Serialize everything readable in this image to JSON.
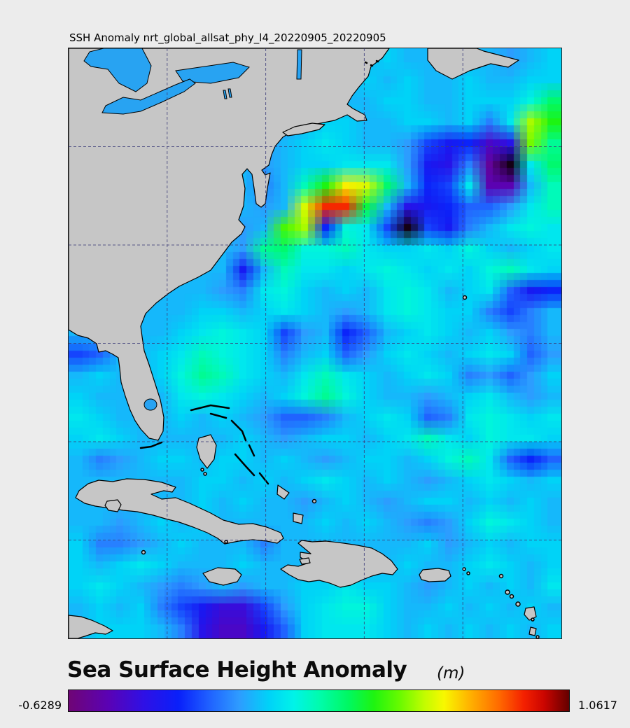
{
  "header": {
    "plot_title": "SSH Anomaly nrt_global_allsat_phy_l4_20220905_20220905"
  },
  "footer": {
    "heading": "Sea Surface Height Anomaly",
    "unit": "(m)",
    "min_label": "-0.6289",
    "max_label": "1.0617"
  },
  "chart_data": {
    "type": "heatmap",
    "title": "SSH Anomaly nrt_global_allsat_phy_l4_20220905_20220905",
    "variable": "Sea Surface Height Anomaly",
    "unit": "m",
    "vmin": -0.6289,
    "vmax": 1.0617,
    "colorbar_labels": [
      "-0.6289",
      "1.0617"
    ],
    "land_color": "#c6c6c6",
    "lake_color": "#28a3f2",
    "below_min_color": "#140014",
    "colormap_stops": [
      [
        0.0,
        "#6f0575"
      ],
      [
        0.08,
        "#5a02b5"
      ],
      [
        0.15,
        "#2f10e5"
      ],
      [
        0.22,
        "#0920fa"
      ],
      [
        0.28,
        "#1f60ff"
      ],
      [
        0.34,
        "#2e9bff"
      ],
      [
        0.4,
        "#00d2f8"
      ],
      [
        0.45,
        "#00f3e8"
      ],
      [
        0.5,
        "#00fcae"
      ],
      [
        0.56,
        "#00f860"
      ],
      [
        0.61,
        "#1ef410"
      ],
      [
        0.66,
        "#66fa00"
      ],
      [
        0.71,
        "#c0fc00"
      ],
      [
        0.75,
        "#f8f800"
      ],
      [
        0.8,
        "#ffb400"
      ],
      [
        0.86,
        "#ff6a00"
      ],
      [
        0.91,
        "#f42000"
      ],
      [
        0.95,
        "#cb0500"
      ],
      [
        1.0,
        "#640000"
      ]
    ],
    "layout_hints": {
      "grid_on": true,
      "v_gridlines": 4,
      "h_gridlines": 5,
      "legend": "bottom colorbar"
    },
    "grid": {
      "cols": 24,
      "rows": 28,
      "values": [
        [
          0,
          0,
          0,
          0,
          0,
          0,
          0,
          0,
          0,
          0,
          -0.05,
          0,
          0,
          0.05,
          0,
          0.05,
          0,
          0,
          0,
          0,
          0,
          -0.05,
          0,
          0.05
        ],
        [
          0,
          0,
          0,
          0,
          0,
          0,
          0,
          0,
          0,
          0,
          -0.05,
          0,
          0.05,
          0,
          0.05,
          0,
          0.05,
          0,
          0,
          0.05,
          0,
          0,
          0.05,
          0.05
        ],
        [
          0,
          0,
          0,
          0,
          0,
          0,
          0,
          0,
          0,
          0,
          -0.05,
          0,
          0.05,
          0,
          0,
          0.05,
          0.05,
          0,
          0,
          0.05,
          0.05,
          0.05,
          0.15,
          0.3
        ],
        [
          0,
          0,
          0,
          0,
          0,
          0,
          0,
          0,
          0,
          -0.05,
          -0.05,
          0,
          0.05,
          0.05,
          0,
          0,
          0.05,
          0.05,
          0,
          0.05,
          -0.1,
          0.1,
          0.55,
          0.4
        ],
        [
          0,
          0,
          0,
          0,
          0,
          0,
          0,
          0,
          0,
          -0.05,
          0,
          0.05,
          0.1,
          0.05,
          0,
          0,
          -0.05,
          -0.2,
          -0.3,
          -0.25,
          -0.45,
          -0.35,
          0.5,
          0.25
        ],
        [
          0,
          0,
          0,
          0,
          0,
          0,
          0,
          0,
          0,
          -0.05,
          0,
          0.05,
          0.05,
          0.1,
          0.1,
          0.1,
          -0.05,
          -0.3,
          -0.35,
          -0.1,
          -0.55,
          -0.72,
          0.1,
          0.3
        ],
        [
          0,
          0,
          0,
          0,
          0,
          0,
          0,
          0,
          0,
          -0.1,
          0,
          0.2,
          0.4,
          0.65,
          0.6,
          0.3,
          0,
          -0.25,
          -0.2,
          0.1,
          -0.5,
          -0.5,
          0,
          0.2
        ],
        [
          0,
          0,
          0,
          0,
          0,
          0,
          0,
          0,
          0,
          -0.05,
          0,
          0.6,
          0.9,
          0.9,
          0.35,
          0,
          -0.35,
          -0.3,
          -0.25,
          -0.15,
          -0.15,
          -0.05,
          0.1,
          0.2
        ],
        [
          0,
          0,
          0,
          0,
          0,
          0,
          0,
          0,
          -0.05,
          0,
          0.45,
          0.55,
          -0.25,
          0.15,
          0.1,
          -0.2,
          -0.7,
          -0.2,
          -0.3,
          -0.1,
          0,
          0.1,
          0.15,
          0.1
        ],
        [
          0,
          0,
          0,
          0,
          0,
          0,
          0,
          0,
          -0.05,
          0.25,
          0.3,
          0.15,
          0.15,
          0.2,
          0.1,
          0.05,
          0.05,
          0.1,
          0.05,
          0.15,
          0.05,
          0,
          0.05,
          0.1
        ],
        [
          0,
          0,
          0,
          0,
          0,
          0,
          0,
          0,
          -0.3,
          0,
          0.2,
          0.1,
          0.1,
          0.05,
          0.1,
          0.15,
          0.1,
          0.05,
          0.1,
          0.05,
          0.15,
          0.2,
          0.1,
          0.05
        ],
        [
          0,
          0,
          0,
          0,
          0,
          0,
          0,
          -0.05,
          -0.1,
          0.1,
          0.15,
          0.05,
          0,
          0.05,
          0,
          0.1,
          0.15,
          0.1,
          0,
          0.05,
          0.1,
          -0.15,
          -0.3,
          -0.25
        ],
        [
          0,
          0,
          0,
          0,
          0,
          0,
          0.05,
          0.05,
          0,
          0.05,
          0.1,
          0.05,
          0,
          -0.05,
          0,
          0.1,
          0.15,
          0.1,
          0.05,
          0.05,
          -0.1,
          -0.2,
          -0.1,
          0
        ],
        [
          0,
          0,
          0,
          0,
          0,
          0.05,
          0.1,
          0.15,
          0.1,
          0.05,
          -0.2,
          -0.05,
          0,
          -0.25,
          -0.15,
          0,
          0.05,
          0.1,
          0.05,
          0,
          0.05,
          -0.05,
          -0.1,
          0
        ],
        [
          -0.2,
          -0.15,
          0,
          0,
          0.05,
          0.1,
          0.2,
          0.15,
          0.1,
          0.05,
          -0.1,
          0,
          0.05,
          -0.15,
          -0.05,
          0.05,
          0.1,
          0.05,
          0,
          0.05,
          0.1,
          0.05,
          -0.15,
          -0.05
        ],
        [
          0,
          0.05,
          0,
          0,
          0.05,
          0.15,
          0.25,
          0.2,
          0.1,
          0.05,
          0,
          0.1,
          0.2,
          0.1,
          0.05,
          0,
          0.05,
          0.1,
          0.05,
          -0.1,
          -0.05,
          -0.15,
          -0.05,
          0.05
        ],
        [
          0.05,
          0,
          0,
          0,
          0,
          0.1,
          0.15,
          0.1,
          0.05,
          0,
          0.05,
          0.15,
          0.25,
          0.15,
          0.05,
          0,
          0,
          -0.05,
          0,
          0.05,
          0.1,
          0,
          -0.05,
          0
        ],
        [
          0.1,
          0.05,
          0,
          0,
          0,
          0.05,
          0,
          0.05,
          0,
          -0.05,
          -0.15,
          -0.15,
          -0.1,
          0,
          0.05,
          0.1,
          0.05,
          -0.15,
          -0.1,
          0.1,
          0.15,
          0.1,
          0.05,
          0.1
        ],
        [
          0.05,
          0.1,
          0.05,
          0,
          0,
          0,
          0,
          0,
          0.05,
          0,
          -0.05,
          0,
          0.05,
          0.05,
          0,
          0.05,
          0.1,
          0.2,
          0.1,
          0.05,
          0.15,
          0.1,
          0.1,
          0.05
        ],
        [
          0,
          -0.1,
          -0.05,
          0,
          0.05,
          0.05,
          0,
          0.05,
          0.05,
          0,
          0.05,
          0,
          -0.05,
          0,
          0.05,
          0.05,
          0,
          0.05,
          0.15,
          0.2,
          0.1,
          -0.15,
          -0.25,
          -0.15
        ],
        [
          0,
          0,
          0,
          0,
          0,
          0,
          0.05,
          0.05,
          0,
          0.05,
          0,
          0.05,
          0.1,
          0.05,
          0,
          0.05,
          0,
          -0.05,
          0,
          0.05,
          0.1,
          0.05,
          0,
          0.05
        ],
        [
          0,
          0,
          0,
          0,
          0,
          0,
          0.05,
          0,
          0.05,
          0,
          0,
          -0.05,
          0,
          0.05,
          0,
          -0.05,
          0,
          0.05,
          0.05,
          0,
          0.05,
          0,
          0.05,
          0
        ],
        [
          0,
          0,
          -0.05,
          0,
          0.05,
          0,
          0.05,
          0,
          0,
          0,
          0,
          0,
          0.05,
          0,
          0.05,
          0,
          -0.05,
          -0.1,
          -0.05,
          0.05,
          0.15,
          0.1,
          0.05,
          0
        ],
        [
          0.05,
          -0.1,
          -0.1,
          -0.05,
          0,
          0.05,
          0,
          0,
          0,
          -0.1,
          0,
          0,
          0,
          0,
          0,
          0,
          0,
          0.05,
          -0.05,
          0,
          0.05,
          0,
          0.05,
          0.05
        ],
        [
          0.05,
          0,
          0.05,
          0.1,
          0.05,
          0,
          0,
          0,
          0.05,
          0,
          0,
          0,
          0,
          0,
          0,
          0,
          0.05,
          0,
          0,
          0.05,
          0.1,
          0.05,
          0,
          0.05
        ],
        [
          0.05,
          0.1,
          0.05,
          0,
          -0.05,
          -0.1,
          -0.05,
          0,
          -0.05,
          0,
          0,
          0.05,
          0.05,
          0.1,
          0.05,
          0.05,
          0,
          -0.05,
          0,
          0.05,
          0,
          0.05,
          0,
          0.1
        ],
        [
          0,
          0.05,
          0,
          0.05,
          -0.1,
          -0.2,
          -0.3,
          -0.4,
          -0.4,
          -0.2,
          -0.05,
          0.05,
          0.1,
          0.15,
          0.15,
          0.05,
          0,
          0,
          0.05,
          0,
          0.05,
          0,
          0.05,
          0
        ],
        [
          0,
          0.05,
          0.05,
          0.05,
          0,
          -0.1,
          -0.35,
          -0.45,
          -0.45,
          -0.3,
          -0.15,
          0.05,
          0.1,
          0.1,
          0.1,
          0.05,
          0,
          0.05,
          0,
          0.05,
          0,
          0.05,
          0,
          0.05
        ]
      ]
    }
  }
}
